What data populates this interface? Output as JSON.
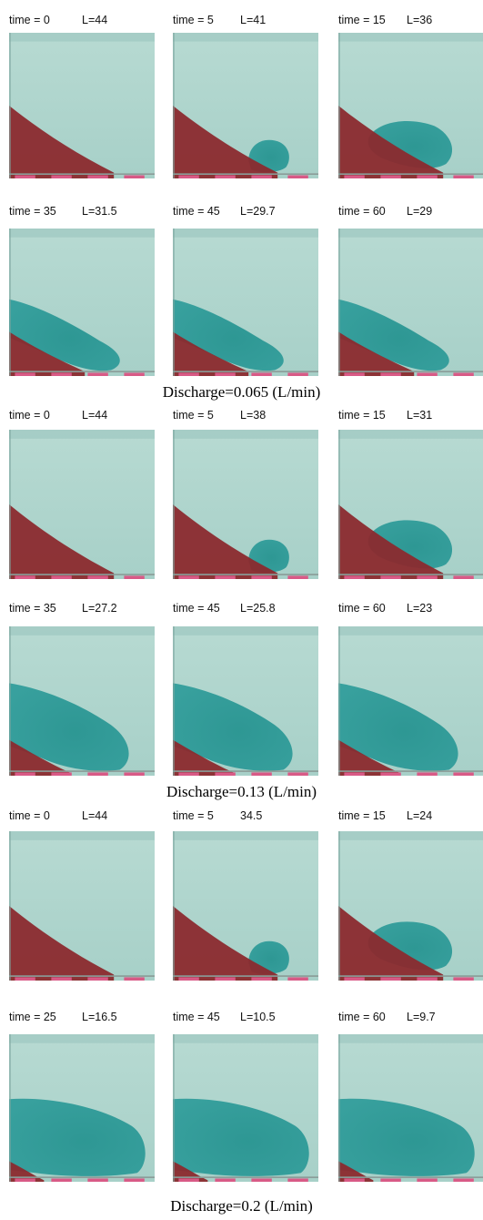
{
  "groups": [
    {
      "caption": "Discharge=0.065 (L/min)",
      "rows": [
        [
          {
            "time": "time = 0",
            "length": "L=44",
            "stage": 0
          },
          {
            "time": "time = 5",
            "length": "L=41",
            "stage": 1
          },
          {
            "time": "time = 15",
            "length": "L=36",
            "stage": 2
          }
        ],
        [
          {
            "time": "time = 35",
            "length": "L=31.5",
            "stage": 3
          },
          {
            "time": "time = 45",
            "length": "L=29.7",
            "stage": 3
          },
          {
            "time": "time = 60",
            "length": "L=29",
            "stage": 3
          }
        ]
      ]
    },
    {
      "caption": "Discharge=0.13 (L/min)",
      "rows": [
        [
          {
            "time": "time = 0",
            "length": "L=44",
            "stage": 0
          },
          {
            "time": "time = 5",
            "length": "L=38",
            "stage": 1
          },
          {
            "time": "time = 15",
            "length": "L=31",
            "stage": 2
          }
        ],
        [
          {
            "time": "time = 35",
            "length": "L=27.2",
            "stage": 4
          },
          {
            "time": "time = 45",
            "length": "L=25.8",
            "stage": 4
          },
          {
            "time": "time = 60",
            "length": "L=23",
            "stage": 4
          }
        ]
      ]
    },
    {
      "caption": "Discharge=0.2 (L/min)",
      "rows": [
        [
          {
            "time": "time = 0",
            "length": "L=44",
            "stage": 0
          },
          {
            "time": "time = 5",
            "length": "34.5",
            "stage": 1
          },
          {
            "time": "time = 15",
            "length": "L=24",
            "stage": 2
          }
        ],
        [
          {
            "time": "time = 25",
            "length": "L=16.5",
            "stage": 5
          },
          {
            "time": "time = 45",
            "length": "L=10.5",
            "stage": 5
          },
          {
            "time": "time = 60",
            "length": "L=9.7",
            "stage": 5
          }
        ]
      ]
    }
  ],
  "colors": {
    "background_water": "#a7d0c8",
    "saltwater_wedge": "#8b2a2e",
    "dye_plume": "#2e9c9a",
    "scale_strip": "#d85a86"
  }
}
